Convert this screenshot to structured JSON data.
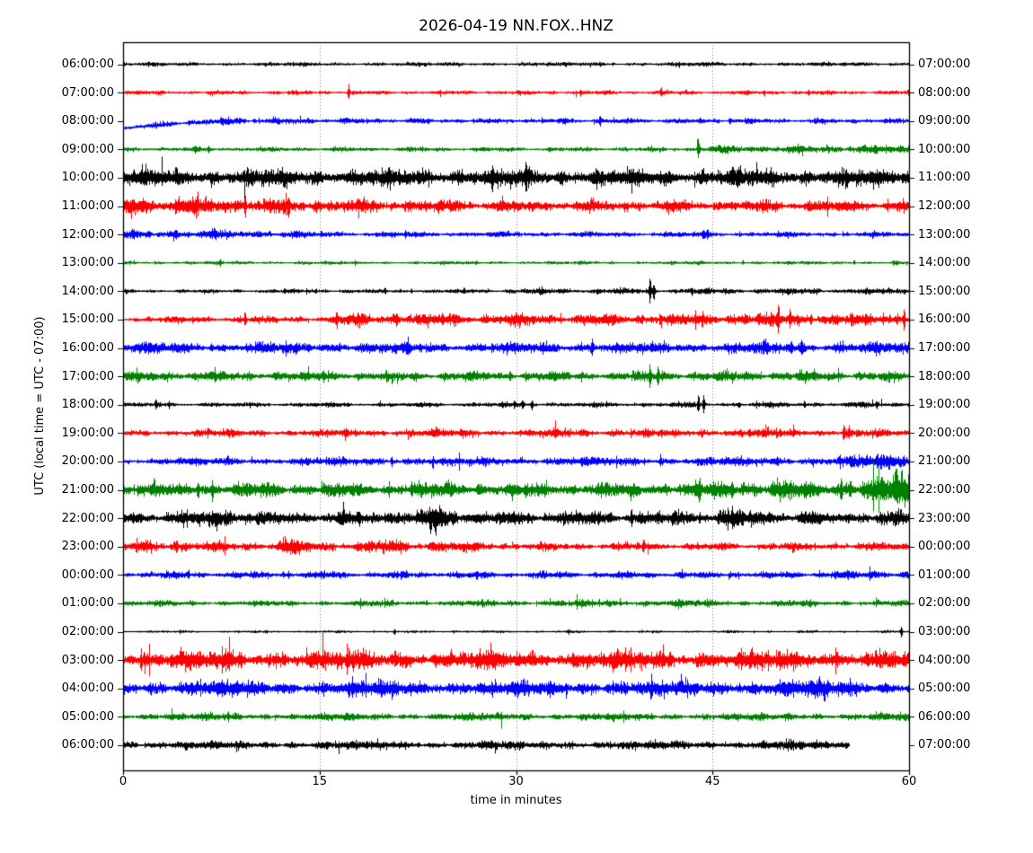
{
  "title": "2026-04-19 NN.FOX..HNZ",
  "ylabel": "UTC (local time = UTC - 07:00)",
  "xlabel": "time in minutes",
  "colors": {
    "k": "#000000",
    "r": "#ff0000",
    "b": "#0000ff",
    "g": "#008000"
  },
  "chart_data": {
    "type": "line",
    "subtype": "seismogram-dayplot-helicorder",
    "title": "2026-04-19 NN.FOX..HNZ",
    "xlabel": "time in minutes",
    "ylabel": "UTC (local time = UTC - 07:00)",
    "x_ticks": [
      0,
      15,
      30,
      45,
      60
    ],
    "x_range": [
      0,
      60
    ],
    "grid": "vertical-dotted-at-15-30-45",
    "color_cycle": [
      "k",
      "r",
      "b",
      "g"
    ],
    "rows": [
      {
        "utc": "06:00:00",
        "local": "07:00:00",
        "color": "k",
        "env": [
          [
            0,
            1.6
          ],
          [
            60,
            1.6
          ]
        ],
        "spikes": []
      },
      {
        "utc": "07:00:00",
        "local": "08:00:00",
        "color": "r",
        "env": [
          [
            0,
            1.7
          ],
          [
            60,
            1.7
          ]
        ],
        "spikes": [
          [
            17.2,
            9
          ],
          [
            34.9,
            2.5
          ],
          [
            52.3,
            2.5
          ]
        ]
      },
      {
        "utc": "08:00:00",
        "local": "09:00:00",
        "color": "b",
        "env": [
          [
            0,
            1.8
          ],
          [
            3,
            2.2
          ],
          [
            8,
            2.6
          ],
          [
            15,
            2.4
          ],
          [
            20,
            2.0
          ],
          [
            60,
            2.0
          ]
        ],
        "drift": [
          [
            0,
            8
          ],
          [
            2,
            5.5
          ],
          [
            5,
            2
          ],
          [
            8,
            0
          ],
          [
            60,
            0
          ]
        ],
        "spikes": [
          [
            5,
            2
          ],
          [
            7.5,
            2.5
          ],
          [
            10,
            2.2
          ],
          [
            36.4,
            5
          ],
          [
            46.3,
            4.5
          ]
        ]
      },
      {
        "utc": "09:00:00",
        "local": "10:00:00",
        "color": "g",
        "env": [
          [
            0,
            2.0
          ],
          [
            20,
            1.8
          ],
          [
            43,
            1.8
          ],
          [
            44,
            2.8
          ],
          [
            50,
            3.2
          ],
          [
            60,
            3.6
          ]
        ],
        "spikes": [
          [
            5.5,
            2.5
          ],
          [
            6.5,
            2.5
          ],
          [
            43.9,
            11
          ]
        ]
      },
      {
        "utc": "10:00:00",
        "local": "11:00:00",
        "color": "k",
        "env": [
          [
            0,
            7
          ],
          [
            60,
            7
          ]
        ],
        "spikes": []
      },
      {
        "utc": "11:00:00",
        "local": "12:00:00",
        "color": "r",
        "env": [
          [
            0,
            7.5
          ],
          [
            6,
            7
          ],
          [
            12,
            5.5
          ],
          [
            20,
            5
          ],
          [
            30,
            4.5
          ],
          [
            40,
            4.2
          ],
          [
            50,
            4.5
          ],
          [
            60,
            4.8
          ]
        ],
        "spikes": [
          [
            9.3,
            11
          ],
          [
            12.6,
            9
          ]
        ]
      },
      {
        "utc": "12:00:00",
        "local": "13:00:00",
        "color": "b",
        "env": [
          [
            0,
            3.2
          ],
          [
            5,
            3.5
          ],
          [
            12,
            3.2
          ],
          [
            15,
            2.4
          ],
          [
            30,
            2.2
          ],
          [
            60,
            2.2
          ]
        ],
        "spikes": [
          [
            2,
            3
          ],
          [
            4,
            3.2
          ],
          [
            7,
            3.4
          ],
          [
            44.3,
            5.5
          ],
          [
            44.6,
            5
          ]
        ]
      },
      {
        "utc": "13:00:00",
        "local": "14:00:00",
        "color": "g",
        "env": [
          [
            0,
            1.4
          ],
          [
            60,
            1.4
          ]
        ],
        "spikes": [
          [
            7.4,
            3.5
          ],
          [
            47.3,
            2.5
          ],
          [
            55.8,
            2.5
          ]
        ]
      },
      {
        "utc": "14:00:00",
        "local": "15:00:00",
        "color": "k",
        "env": [
          [
            0,
            1.5
          ],
          [
            25,
            1.7
          ],
          [
            32,
            2.4
          ],
          [
            45,
            2.4
          ],
          [
            50,
            2.6
          ],
          [
            57,
            2.4
          ],
          [
            60,
            2.2
          ]
        ],
        "spikes": [
          [
            12.3,
            2.5
          ],
          [
            14.7,
            2.5
          ],
          [
            20,
            2.5
          ],
          [
            22,
            2.5
          ],
          [
            26,
            2.5
          ],
          [
            40.2,
            13
          ],
          [
            40.5,
            9
          ],
          [
            43.4,
            3.5
          ],
          [
            58,
            2.5
          ]
        ]
      },
      {
        "utc": "15:00:00",
        "local": "16:00:00",
        "color": "r",
        "env": [
          [
            0,
            2.4
          ],
          [
            8,
            2.6
          ],
          [
            16,
            2.6
          ],
          [
            17,
            4.8
          ],
          [
            25,
            4.6
          ],
          [
            35,
            4.4
          ],
          [
            45,
            4.6
          ],
          [
            55,
            4.6
          ],
          [
            60,
            5
          ]
        ],
        "spikes": [
          [
            9.3,
            7
          ],
          [
            16.3,
            9
          ],
          [
            20.9,
            6.5
          ],
          [
            41,
            4
          ],
          [
            47.5,
            4
          ],
          [
            48.5,
            5
          ],
          [
            50.0,
            15
          ],
          [
            50.9,
            7
          ],
          [
            52.5,
            6.5
          ],
          [
            59.6,
            12
          ]
        ]
      },
      {
        "utc": "16:00:00",
        "local": "17:00:00",
        "color": "b",
        "env": [
          [
            0,
            4.4
          ],
          [
            30,
            4.2
          ],
          [
            60,
            4.6
          ]
        ],
        "spikes": [
          [
            16.5,
            5.5
          ],
          [
            21.7,
            5
          ],
          [
            35.8,
            7.5
          ],
          [
            51.0,
            6
          ],
          [
            51.8,
            6
          ]
        ]
      },
      {
        "utc": "17:00:00",
        "local": "18:00:00",
        "color": "g",
        "env": [
          [
            0,
            4.2
          ],
          [
            10,
            3.8
          ],
          [
            20,
            3.6
          ],
          [
            30,
            3.8
          ],
          [
            47,
            4
          ],
          [
            52,
            4.2
          ],
          [
            60,
            3.6
          ]
        ],
        "spikes": [
          [
            7,
            5.5
          ],
          [
            15.3,
            6
          ],
          [
            29.5,
            5
          ],
          [
            40.2,
            11
          ],
          [
            40.8,
            10
          ]
        ]
      },
      {
        "utc": "18:00:00",
        "local": "19:00:00",
        "color": "k",
        "env": [
          [
            0,
            1.8
          ],
          [
            30,
            2.0
          ],
          [
            60,
            2.2
          ]
        ],
        "spikes": [
          [
            2.5,
            4.5
          ],
          [
            3.5,
            3
          ],
          [
            30.5,
            5
          ],
          [
            31.2,
            6
          ],
          [
            43.9,
            11
          ],
          [
            44.3,
            9
          ],
          [
            47,
            3
          ],
          [
            52,
            3
          ],
          [
            57.5,
            3.5
          ]
        ]
      },
      {
        "utc": "19:00:00",
        "local": "20:00:00",
        "color": "r",
        "env": [
          [
            0,
            2.2
          ],
          [
            4,
            3
          ],
          [
            8,
            3
          ],
          [
            12,
            2.6
          ],
          [
            18,
            3.2
          ],
          [
            24,
            3.4
          ],
          [
            28,
            2.8
          ],
          [
            34,
            3.4
          ],
          [
            40,
            3.2
          ],
          [
            46,
            3.4
          ],
          [
            51,
            3.2
          ],
          [
            60,
            3
          ]
        ],
        "spikes": [
          [
            17,
            3.5
          ],
          [
            47.8,
            4
          ],
          [
            55.0,
            8
          ],
          [
            55.4,
            6
          ]
        ]
      },
      {
        "utc": "20:00:00",
        "local": "21:00:00",
        "color": "b",
        "env": [
          [
            0,
            2.6
          ],
          [
            8,
            3.2
          ],
          [
            14,
            3.2
          ],
          [
            20,
            3.4
          ],
          [
            26,
            3.2
          ],
          [
            32,
            3.6
          ],
          [
            38,
            3.4
          ],
          [
            44,
            3.6
          ],
          [
            50,
            3.6
          ],
          [
            55,
            4
          ],
          [
            57,
            6
          ],
          [
            60,
            6.5
          ]
        ],
        "spikes": [
          [
            20.5,
            4.5
          ],
          [
            35,
            4.5
          ],
          [
            41,
            5
          ]
        ]
      },
      {
        "utc": "21:00:00",
        "local": "22:00:00",
        "color": "g",
        "env": [
          [
            0,
            5
          ],
          [
            10,
            5.5
          ],
          [
            20,
            5
          ],
          [
            25,
            6
          ],
          [
            30,
            5.5
          ],
          [
            38,
            5.5
          ],
          [
            44,
            6
          ],
          [
            48,
            7
          ],
          [
            50,
            9
          ],
          [
            52,
            7
          ],
          [
            54,
            6
          ],
          [
            55,
            8
          ],
          [
            57,
            9
          ],
          [
            58,
            12
          ],
          [
            60,
            13
          ]
        ],
        "spikes": [
          [
            5.7,
            9
          ],
          [
            6.8,
            9
          ],
          [
            22,
            7
          ],
          [
            44,
            8
          ],
          [
            46.5,
            7
          ],
          [
            54.8,
            11
          ]
        ]
      },
      {
        "utc": "22:00:00",
        "local": "23:00:00",
        "color": "k",
        "env": [
          [
            0,
            4.5
          ],
          [
            5,
            5
          ],
          [
            7,
            8
          ],
          [
            8.5,
            9
          ],
          [
            10,
            5
          ],
          [
            15,
            5
          ],
          [
            23,
            6
          ],
          [
            23.8,
            11
          ],
          [
            25,
            10
          ],
          [
            26,
            6
          ],
          [
            30,
            5
          ],
          [
            35,
            5.5
          ],
          [
            40,
            5
          ],
          [
            44,
            5.5
          ],
          [
            47,
            7
          ],
          [
            49,
            6
          ],
          [
            53,
            5
          ],
          [
            57,
            5
          ],
          [
            60,
            5.5
          ]
        ],
        "spikes": [
          [
            21,
            5
          ],
          [
            38.8,
            8
          ],
          [
            44,
            6
          ]
        ]
      },
      {
        "utc": "23:00:00",
        "local": "00:00:00",
        "color": "r",
        "env": [
          [
            0,
            3.4
          ],
          [
            4,
            4.6
          ],
          [
            6,
            3.6
          ],
          [
            11,
            4
          ],
          [
            12.5,
            6.5
          ],
          [
            13.5,
            5.5
          ],
          [
            15,
            3.6
          ],
          [
            19.5,
            5
          ],
          [
            21,
            5.5
          ],
          [
            23,
            4
          ],
          [
            24,
            5.5
          ],
          [
            25.5,
            4
          ],
          [
            30,
            3
          ],
          [
            40,
            3
          ],
          [
            50,
            3
          ],
          [
            60,
            3.2
          ]
        ],
        "spikes": [
          [
            4.1,
            6
          ],
          [
            39.7,
            7
          ]
        ]
      },
      {
        "utc": "00:00:00",
        "local": "01:00:00",
        "color": "b",
        "env": [
          [
            0,
            2.8
          ],
          [
            20,
            2.8
          ],
          [
            40,
            2.6
          ],
          [
            52,
            2.8
          ],
          [
            54,
            3.6
          ],
          [
            58,
            3.6
          ],
          [
            60,
            3
          ]
        ],
        "spikes": [
          [
            5,
            3.2
          ],
          [
            16,
            3.2
          ],
          [
            27,
            3.2
          ]
        ]
      },
      {
        "utc": "01:00:00",
        "local": "02:00:00",
        "color": "g",
        "env": [
          [
            0,
            2.2
          ],
          [
            25,
            2.4
          ],
          [
            35,
            2.8
          ],
          [
            45,
            2.8
          ],
          [
            50,
            2.4
          ],
          [
            60,
            2.4
          ]
        ],
        "spikes": []
      },
      {
        "utc": "02:00:00",
        "local": "03:00:00",
        "color": "k",
        "env": [
          [
            0,
            1.0
          ],
          [
            60,
            1.0
          ]
        ],
        "spikes": [
          [
            20.7,
            2.8
          ],
          [
            59.4,
            7.5
          ]
        ]
      },
      {
        "utc": "03:00:00",
        "local": "04:00:00",
        "color": "r",
        "env": [
          [
            0,
            7.2
          ],
          [
            60,
            7.2
          ]
        ],
        "spikes": []
      },
      {
        "utc": "04:00:00",
        "local": "05:00:00",
        "color": "b",
        "env": [
          [
            0,
            6
          ],
          [
            48,
            6.2
          ],
          [
            50,
            7.5
          ],
          [
            53,
            7.5
          ],
          [
            55,
            6.5
          ],
          [
            60,
            6
          ]
        ],
        "spikes": []
      },
      {
        "utc": "05:00:00",
        "local": "06:00:00",
        "color": "g",
        "env": [
          [
            0,
            3
          ],
          [
            60,
            3
          ]
        ],
        "spikes": []
      },
      {
        "utc": "06:00:00",
        "local": "07:00:00",
        "color": "k",
        "env": [
          [
            0,
            3.2
          ],
          [
            45,
            3.4
          ],
          [
            50,
            3.8
          ],
          [
            54,
            3.6
          ],
          [
            55.4,
            3.2
          ]
        ],
        "end_min": 55.4,
        "spikes": []
      }
    ]
  }
}
